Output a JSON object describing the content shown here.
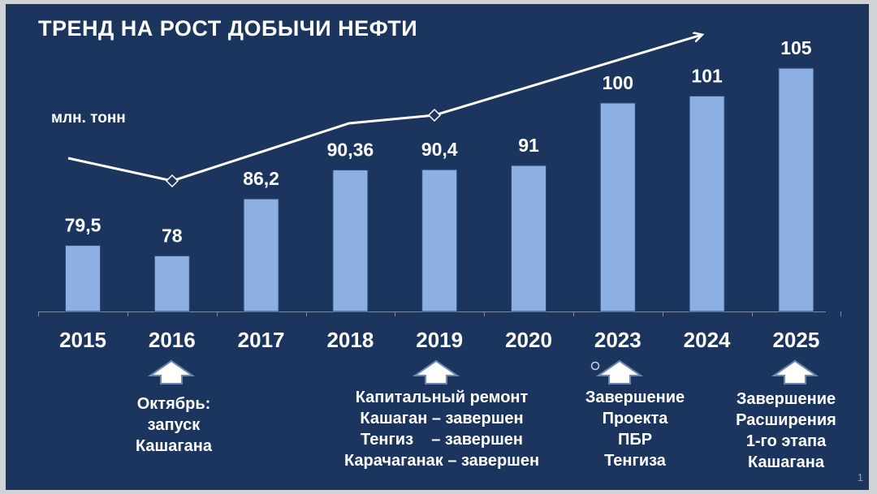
{
  "slide": {
    "title": "ТРЕНД НА РОСТ ДОБЫЧИ НЕФТИ",
    "unit_label": "млн. тонн",
    "page_number": "1"
  },
  "colors": {
    "background": "#1b355f",
    "bar": "#8db0e2",
    "text": "#ffffff",
    "trend_line": "#ffffff"
  },
  "chart_data": {
    "type": "bar",
    "categories": [
      "2015",
      "2016",
      "2017",
      "2018",
      "2019",
      "2020",
      "2023",
      "2024",
      "2025"
    ],
    "values": [
      79.5,
      78,
      86.2,
      90.36,
      90.4,
      91,
      100,
      101,
      105
    ],
    "value_labels": [
      "79,5",
      "78",
      "86,2",
      "90,36",
      "90,4",
      "91",
      "100",
      "101",
      "105"
    ],
    "ylim": [
      70,
      107
    ],
    "grid": false,
    "trend_line": "arrow"
  },
  "annotations": [
    {
      "category": "2016",
      "arrow_icon": "up-arrow-icon",
      "text": "Октябрь:\nзапуск\nКашагана"
    },
    {
      "category": "2019",
      "arrow_icon": "up-arrow-icon",
      "text": "Капитальный ремонт\nКашаган – завершен\nТенгиз    – завершен\nКарачаганак – завершен"
    },
    {
      "category": "2023",
      "arrow_icon": "up-arrow-icon",
      "text": "Завершение\nПроекта\nПБР\nТенгиза"
    },
    {
      "category": "2025",
      "arrow_icon": "up-arrow-icon",
      "text": "Завершение\nРасширения\n1-го этапа\nКашагана"
    }
  ]
}
